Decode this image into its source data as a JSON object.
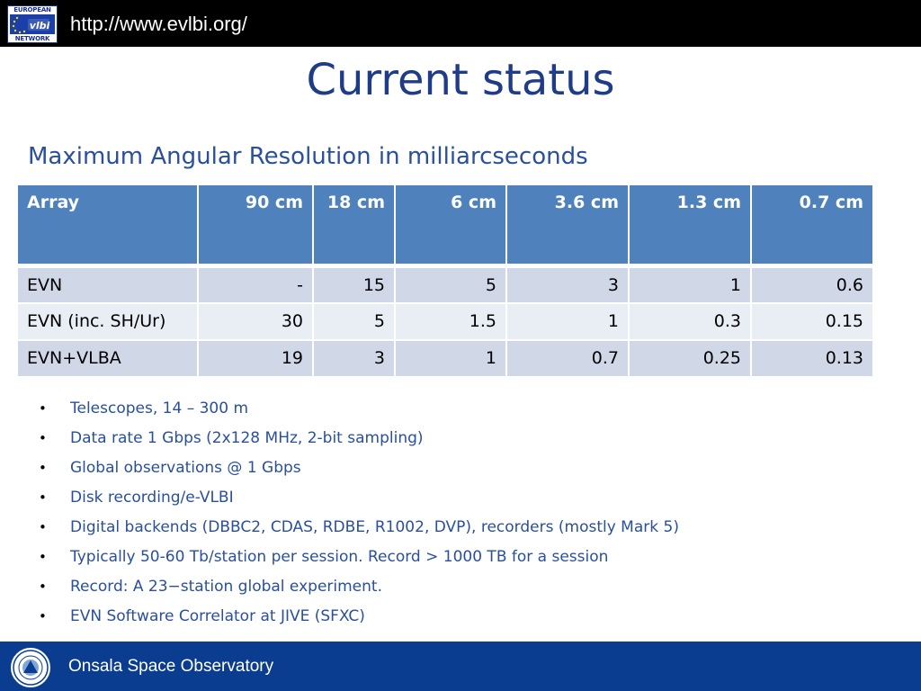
{
  "header": {
    "url": "http://www.evlbi.org/",
    "logo_top_text": "EUROPEAN",
    "logo_bottom_text": "NETWORK",
    "logo_mid_text": "vlbi"
  },
  "title": "Current status",
  "subtitle": "Maximum Angular Resolution in milliarcseconds",
  "table": {
    "headers": [
      "Array",
      "90 cm",
      "18 cm",
      "6 cm",
      "3.6 cm",
      "1.3 cm",
      "0.7 cm"
    ],
    "rows": [
      [
        "EVN",
        "-",
        "15",
        "5",
        "3",
        "1",
        "0.6"
      ],
      [
        "EVN (inc. SH/Ur)",
        "30",
        "5",
        "1.5",
        "1",
        "0.3",
        "0.15"
      ],
      [
        "EVN+VLBA",
        "19",
        "3",
        "1",
        "0.7",
        "0.25",
        "0.13"
      ]
    ]
  },
  "bullets": [
    "Telescopes, 14 – 300 m",
    "Data rate 1 Gbps (2x128 MHz, 2-bit sampling)",
    "Global observations @ 1 Gbps",
    "Disk recording/e-VLBI",
    "Digital backends (DBBC2, CDAS, RDBE, R1002, DVP), recorders (mostly Mark 5)",
    "Typically 50-60 Tb/station per session. Record > 1000 TB for a session",
    "Record: A 23−station global experiment.",
    "EVN Software Correlator at JIVE (SFXC)"
  ],
  "bullet_symbol": "•",
  "footer": {
    "text": "Onsala Space Observatory"
  },
  "colors": {
    "title": "#1f3c88",
    "subtitle": "#2a4f9c",
    "table_header": "#4f81bd",
    "row_odd": "#d0d8e8",
    "row_even": "#e9edf4",
    "footer_bg": "#0a3d8f"
  }
}
